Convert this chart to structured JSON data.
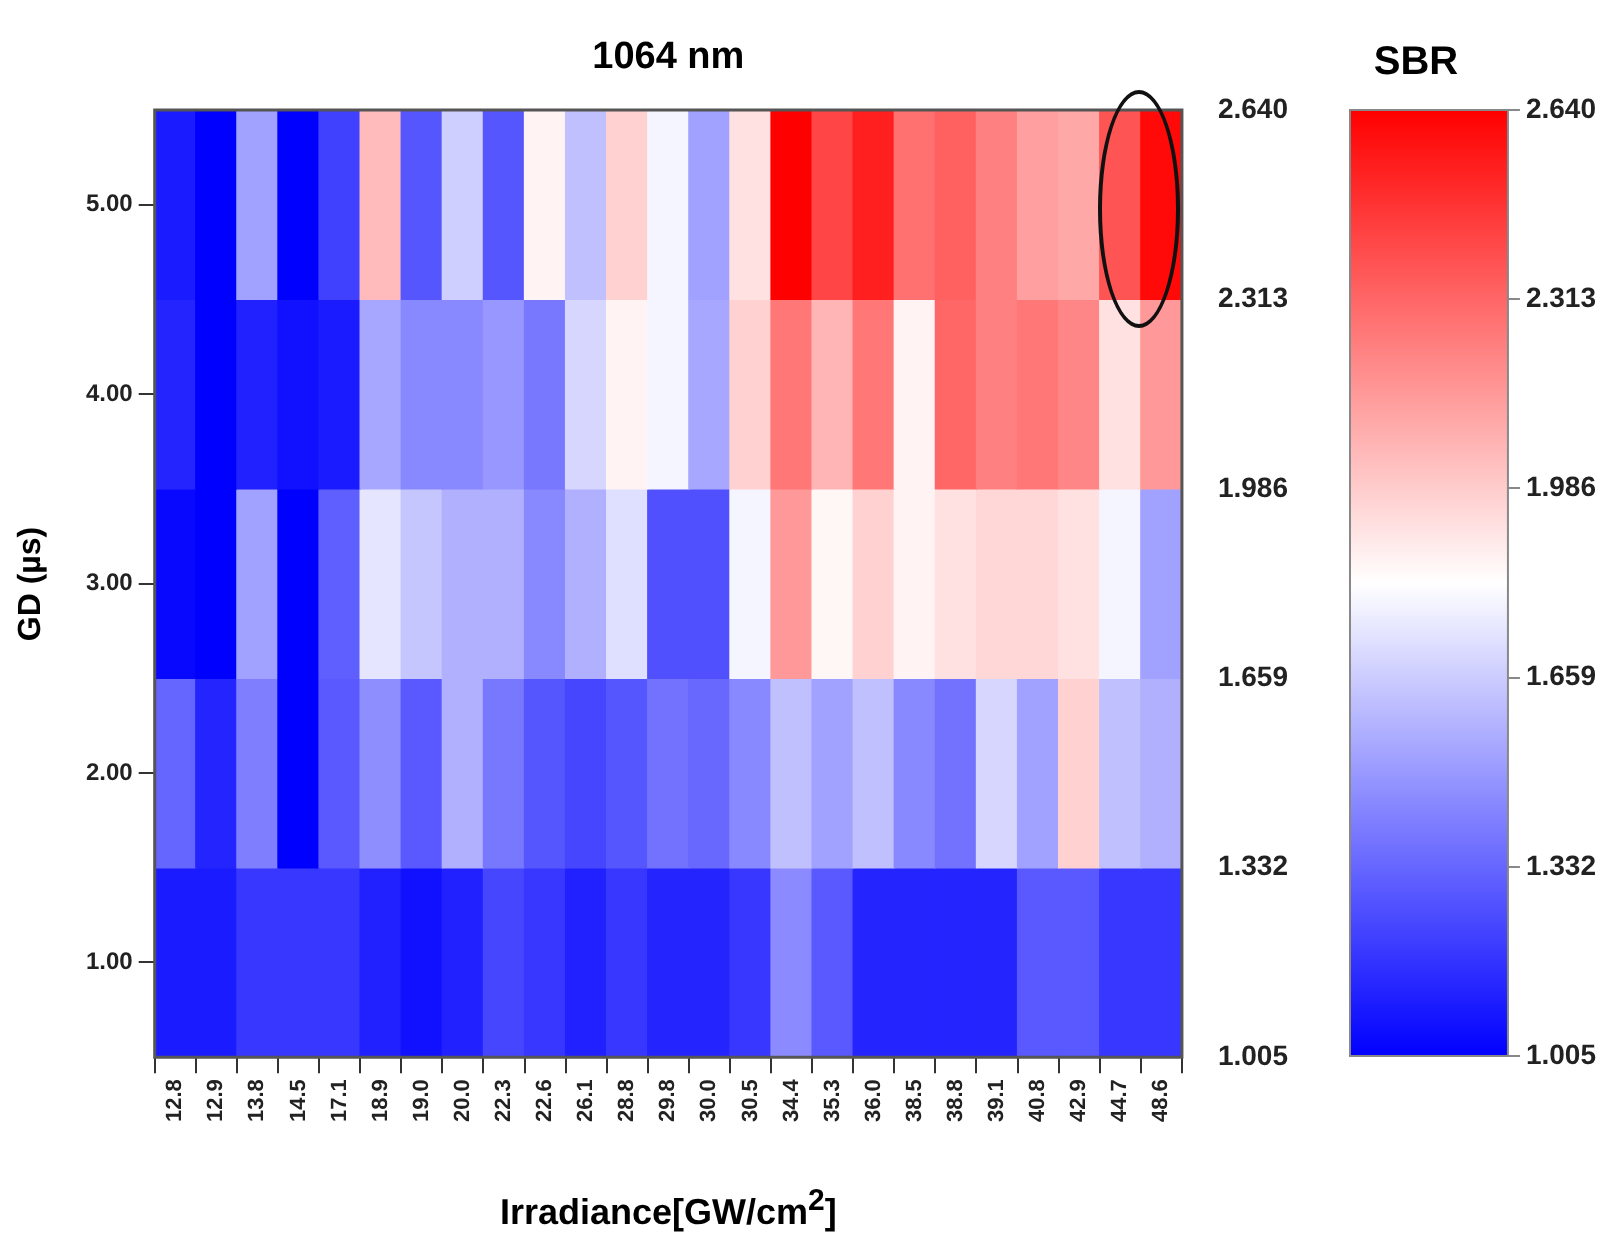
{
  "chart_data": {
    "type": "heatmap",
    "title": "1064 nm",
    "xlabel": "Irradiance[GW/cm$^{2}$]",
    "ylabel": "GD (µs)",
    "clabel": "SBR",
    "categories": [
      "12.8",
      "12.9",
      "13.8",
      "14.5",
      "17.1",
      "18.9",
      "19.0",
      "20.0",
      "22.3",
      "22.6",
      "26.1",
      "28.8",
      "29.8",
      "30.0",
      "30.5",
      "34.4",
      "35.3",
      "36.0",
      "38.5",
      "38.8",
      "39.1",
      "40.8",
      "42.9",
      "44.7",
      "48.6"
    ],
    "y_categories": [
      "5.00",
      "4.00",
      "3.00",
      "2.00",
      "1.00"
    ],
    "cells": [
      [
        1.09,
        1.005,
        1.52,
        1.005,
        1.21,
        2.04,
        1.28,
        1.67,
        1.28,
        1.86,
        1.62,
        1.97,
        1.79,
        1.52,
        1.92,
        2.64,
        2.42,
        2.54,
        2.28,
        2.33,
        2.23,
        2.13,
        2.1,
        2.37,
        2.61
      ],
      [
        1.12,
        1.005,
        1.11,
        1.06,
        1.09,
        1.54,
        1.44,
        1.44,
        1.49,
        1.39,
        1.69,
        1.86,
        1.79,
        1.54,
        1.97,
        2.26,
        2.06,
        2.26,
        1.86,
        2.31,
        2.23,
        2.26,
        2.21,
        1.92,
        2.15
      ],
      [
        1.03,
        1.005,
        1.52,
        1.005,
        1.31,
        1.74,
        1.64,
        1.57,
        1.57,
        1.44,
        1.57,
        1.72,
        1.26,
        1.26,
        1.79,
        2.15,
        1.85,
        1.97,
        1.86,
        1.92,
        1.95,
        1.95,
        1.92,
        1.79,
        1.52
      ],
      [
        1.33,
        1.12,
        1.41,
        1.005,
        1.29,
        1.46,
        1.29,
        1.57,
        1.39,
        1.28,
        1.23,
        1.28,
        1.37,
        1.34,
        1.44,
        1.62,
        1.52,
        1.62,
        1.44,
        1.37,
        1.69,
        1.52,
        1.97,
        1.62,
        1.57
      ],
      [
        1.09,
        1.09,
        1.18,
        1.18,
        1.18,
        1.11,
        1.06,
        1.11,
        1.23,
        1.18,
        1.11,
        1.18,
        1.12,
        1.12,
        1.18,
        1.45,
        1.29,
        1.12,
        1.12,
        1.12,
        1.12,
        1.29,
        1.29,
        1.18,
        1.18
      ]
    ],
    "clim": [
      1.005,
      2.64
    ],
    "cticks": [
      {
        "value": 1.005,
        "label": "1.005"
      },
      {
        "value": 1.332,
        "label": "1.332"
      },
      {
        "value": 1.659,
        "label": "1.659"
      },
      {
        "value": 1.986,
        "label": "1.986"
      },
      {
        "value": 2.313,
        "label": "2.313"
      },
      {
        "value": 2.64,
        "label": "2.640"
      }
    ],
    "y2lim": [
      1.005,
      2.64
    ],
    "y2ticks": [
      {
        "value": 1.005,
        "label": "1.005"
      },
      {
        "value": 1.332,
        "label": "1.332"
      },
      {
        "value": 1.659,
        "label": "1.659"
      },
      {
        "value": 1.986,
        "label": "1.986"
      },
      {
        "value": 2.313,
        "label": "2.313"
      },
      {
        "value": 2.64,
        "label": "2.640"
      }
    ]
  }
}
